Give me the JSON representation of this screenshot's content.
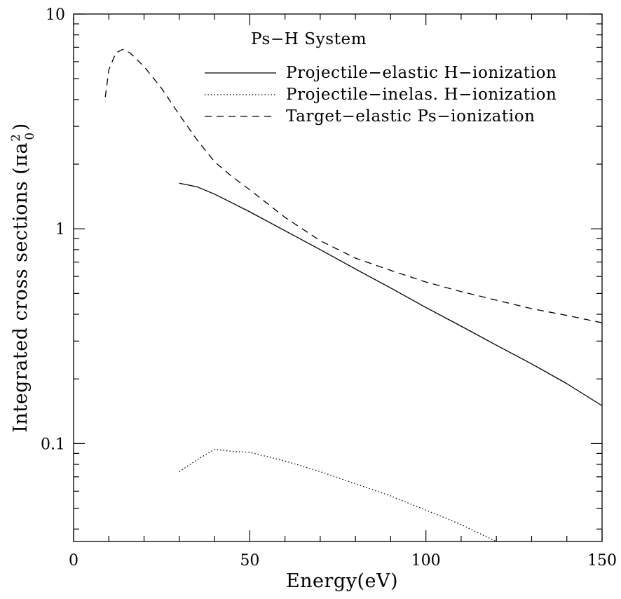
{
  "chart_data": {
    "type": "line",
    "title": "Ps−H System",
    "xlabel": "Energy(eV)",
    "ylabel": "Integrated cross sections (πa",
    "ylabel_sup": "2",
    "ylabel_sub": "0",
    "ylabel_close": ")",
    "xlim": [
      0,
      150
    ],
    "ylim": [
      0.035,
      10
    ],
    "yscale": "log",
    "grid": false,
    "legend_position": "top-right",
    "x_ticks": [
      {
        "value": 0,
        "label": "0"
      },
      {
        "value": 50,
        "label": "50"
      },
      {
        "value": 100,
        "label": "100"
      },
      {
        "value": 150,
        "label": "150"
      }
    ],
    "y_ticks": [
      {
        "value": 0.1,
        "label": "0.1"
      },
      {
        "value": 1,
        "label": "1"
      },
      {
        "value": 10,
        "label": "10"
      }
    ],
    "series": [
      {
        "name": "Projectile−elastic H−ionization",
        "style": "solid",
        "x": [
          30,
          35,
          40,
          45,
          50,
          60,
          70,
          80,
          90,
          100,
          110,
          120,
          130,
          140,
          150
        ],
        "y": [
          1.63,
          1.57,
          1.45,
          1.32,
          1.2,
          0.98,
          0.8,
          0.65,
          0.53,
          0.43,
          0.352,
          0.287,
          0.235,
          0.19,
          0.15
        ]
      },
      {
        "name": "Projectile−inelas. H−ionization",
        "style": "dotted",
        "x": [
          30,
          35,
          40,
          45,
          50,
          60,
          70,
          80,
          90,
          100,
          110,
          120
        ],
        "y": [
          0.074,
          0.084,
          0.094,
          0.092,
          0.091,
          0.083,
          0.074,
          0.065,
          0.057,
          0.049,
          0.042,
          0.035
        ]
      },
      {
        "name": "Target−elastic Ps−ionization",
        "style": "dashed",
        "x": [
          9,
          10,
          12,
          14,
          16,
          20,
          25,
          30,
          35,
          40,
          45,
          50,
          60,
          70,
          80,
          90,
          100,
          110,
          120,
          130,
          140,
          150
        ],
        "y": [
          4.1,
          5.5,
          6.6,
          6.85,
          6.6,
          5.7,
          4.5,
          3.4,
          2.6,
          2.05,
          1.75,
          1.52,
          1.13,
          0.88,
          0.73,
          0.64,
          0.565,
          0.51,
          0.465,
          0.425,
          0.395,
          0.365
        ]
      }
    ]
  }
}
